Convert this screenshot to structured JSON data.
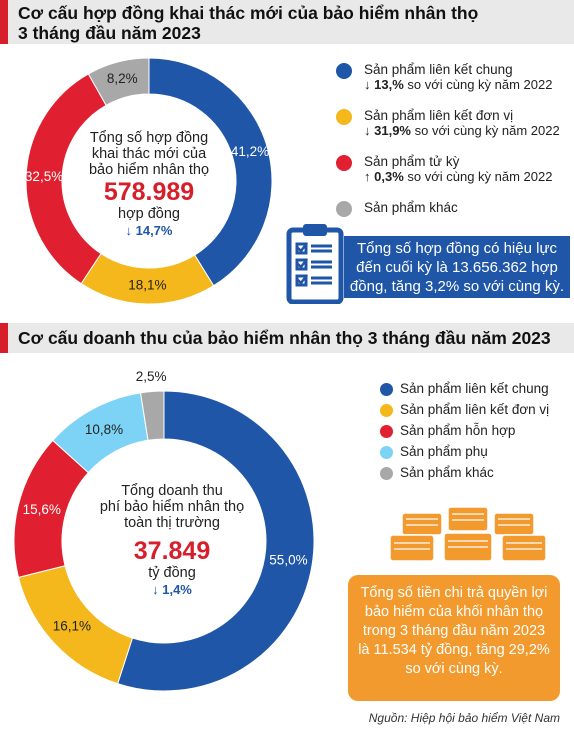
{
  "section1": {
    "title_line1": "Cơ cấu hợp đồng khai thác mới của bảo hiểm nhân thọ",
    "title_line2": "3 tháng đầu năm 2023",
    "center": {
      "line1": "Tổng số hợp đồng",
      "line2": "khai thác mới của",
      "line3": "bảo hiểm nhân thọ",
      "value": "578.989",
      "unit": "hợp đồng",
      "change": "↓ 14,7%"
    },
    "legend": [
      {
        "label": "Sản phẩm liên kết chung",
        "color": "#1f56a7",
        "arrow": "↓",
        "pct": "13,%",
        "note": " so với cùng kỳ năm 2022"
      },
      {
        "label": "Sản phẩm liên kết đơn vị",
        "color": "#f4b81c",
        "arrow": "↓",
        "pct": "31,9%",
        "note": " so với cùng kỳ năm 2022"
      },
      {
        "label": "Sản phẩm tử kỳ",
        "color": "#e02030",
        "arrow": "↑",
        "pct": "0,3%",
        "note": " so với cùng kỳ năm 2022"
      },
      {
        "label": "Sản phẩm khác",
        "color": "#a8a8a8"
      }
    ],
    "info_box": {
      "line1": "Tổng số hợp đồng có hiệu lực",
      "line2": "đến cuối kỳ là 13.656.362 hợp",
      "line3": "đồng, tăng 3,2% so với cùng kỳ."
    },
    "icon": "checklist-clipboard-icon"
  },
  "section2": {
    "title": "Cơ cấu doanh thu của bảo hiểm nhân thọ 3 tháng đầu năm 2023",
    "center": {
      "line1": "Tổng doanh thu",
      "line2": "phí bảo hiểm nhân thọ",
      "line3": "toàn thị trường",
      "value": "37.849",
      "unit": "tỷ đồng",
      "change": "↓ 1,4%"
    },
    "legend": [
      {
        "label": "Sản phẩm liên kết chung",
        "color": "#1f56a7"
      },
      {
        "label": "Sản phẩm liên kết đơn vị",
        "color": "#f4b81c"
      },
      {
        "label": "Sản phẩm hỗn hợp",
        "color": "#e02030"
      },
      {
        "label": "Sản phẩm phụ",
        "color": "#7dd3f5"
      },
      {
        "label": "Sản phẩm khác",
        "color": "#a8a8a8"
      }
    ],
    "orange_box": {
      "line1": "Tổng số tiền chi trả quyền lợi",
      "line2": "bảo hiểm của khối nhân thọ",
      "line3": "trong 3 tháng đầu năm 2023",
      "line4": "là 11.534 tỷ đồng, tăng 29,2%",
      "line5": "so với cùng kỳ."
    },
    "icon": "money-stacks-icon"
  },
  "source": "Nguồn: Hiệp hội bảo hiểm  Việt Nam",
  "chart_data": [
    {
      "type": "pie",
      "title": "Cơ cấu hợp đồng khai thác mới của bảo hiểm nhân thọ 3 tháng đầu năm 2023",
      "categories": [
        "Sản phẩm liên kết chung",
        "Sản phẩm liên kết đơn vị",
        "Sản phẩm tử kỳ",
        "Sản phẩm khác"
      ],
      "values": [
        41.2,
        18.1,
        32.5,
        8.2
      ],
      "labels": [
        "41,2%",
        "18,1%",
        "32,5%",
        "8,2%"
      ],
      "colors": [
        "#1f56a7",
        "#f4b81c",
        "#e02030",
        "#a8a8a8"
      ],
      "legend": "right"
    },
    {
      "type": "pie",
      "title": "Cơ cấu doanh thu của bảo hiểm nhân thọ 3 tháng đầu năm 2023",
      "categories": [
        "Sản phẩm liên kết chung",
        "Sản phẩm liên kết đơn vị",
        "Sản phẩm hỗn hợp",
        "Sản phẩm phụ",
        "Sản phẩm khác"
      ],
      "values": [
        55.0,
        16.1,
        15.6,
        10.8,
        2.5
      ],
      "labels": [
        "55,0%",
        "16,1%",
        "15,6%",
        "10,8%",
        "2,5%"
      ],
      "colors": [
        "#1f56a7",
        "#f4b81c",
        "#e02030",
        "#7dd3f5",
        "#a8a8a8"
      ],
      "legend": "right"
    }
  ]
}
